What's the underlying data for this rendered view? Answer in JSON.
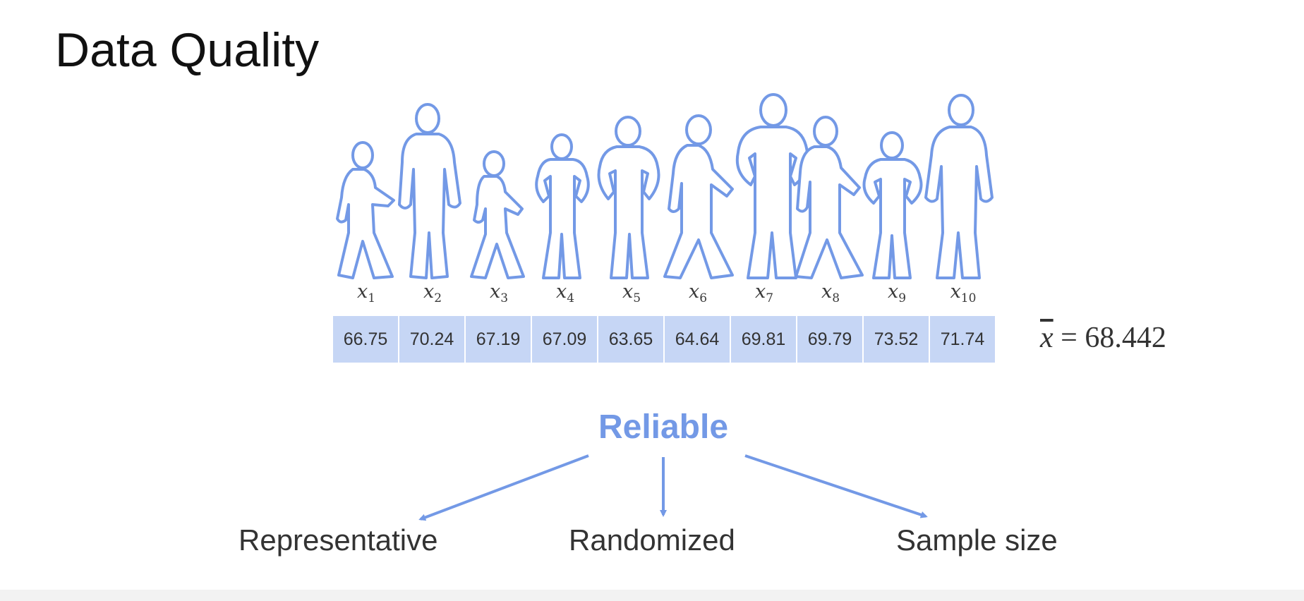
{
  "title": "Data Quality",
  "accent_color": "#7399e6",
  "cell_color": "#c6d6f5",
  "samples": [
    {
      "label": "x",
      "sub": "1",
      "value": "66.75"
    },
    {
      "label": "x",
      "sub": "2",
      "value": "70.24"
    },
    {
      "label": "x",
      "sub": "3",
      "value": "67.19"
    },
    {
      "label": "x",
      "sub": "4",
      "value": "67.09"
    },
    {
      "label": "x",
      "sub": "5",
      "value": "63.65"
    },
    {
      "label": "x",
      "sub": "6",
      "value": "64.64"
    },
    {
      "label": "x",
      "sub": "7",
      "value": "69.81"
    },
    {
      "label": "x",
      "sub": "8",
      "value": "69.79"
    },
    {
      "label": "x",
      "sub": "9",
      "value": "73.52"
    },
    {
      "label": "x",
      "sub": "10",
      "value": "71.74"
    }
  ],
  "mean": {
    "symbol": "x",
    "equals": " = ",
    "value": "68.442"
  },
  "root": "Reliable",
  "branches": [
    "Representative",
    "Randomized",
    "Sample size"
  ]
}
